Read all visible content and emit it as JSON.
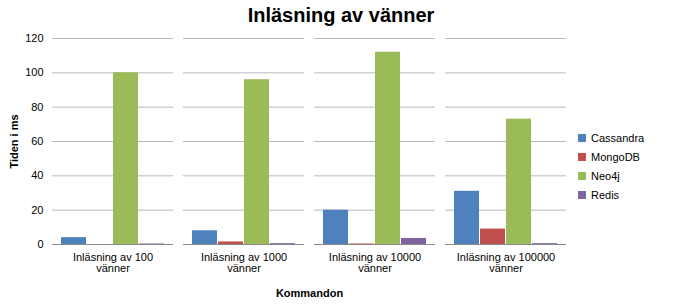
{
  "chart_data": {
    "type": "bar",
    "title": "Inläsning av vänner",
    "x_label": "Kommandon",
    "y_label": "Tiden i ms",
    "categories": [
      "Inläsning av 100 vänner",
      "Inläsning av 1000 vänner",
      "Inläsning av 10000 vänner",
      "Inläsning av 100000 vänner"
    ],
    "series": [
      {
        "name": "Cassandra",
        "color": "#4f81bd",
        "values": [
          4,
          8,
          20,
          31
        ]
      },
      {
        "name": "MongoDB",
        "color": "#c0504d",
        "values": [
          0,
          1.5,
          0.3,
          9
        ]
      },
      {
        "name": "Neo4j",
        "color": "#9bbb59",
        "values": [
          100,
          96,
          112,
          73
        ]
      },
      {
        "name": "Redis",
        "color": "#8064a2",
        "values": [
          0.3,
          0.5,
          3.5,
          0.5
        ]
      }
    ],
    "ylim": [
      0,
      120
    ],
    "yticks": [
      0,
      20,
      40,
      60,
      80,
      100,
      120
    ],
    "grid": true,
    "legend": "right"
  }
}
